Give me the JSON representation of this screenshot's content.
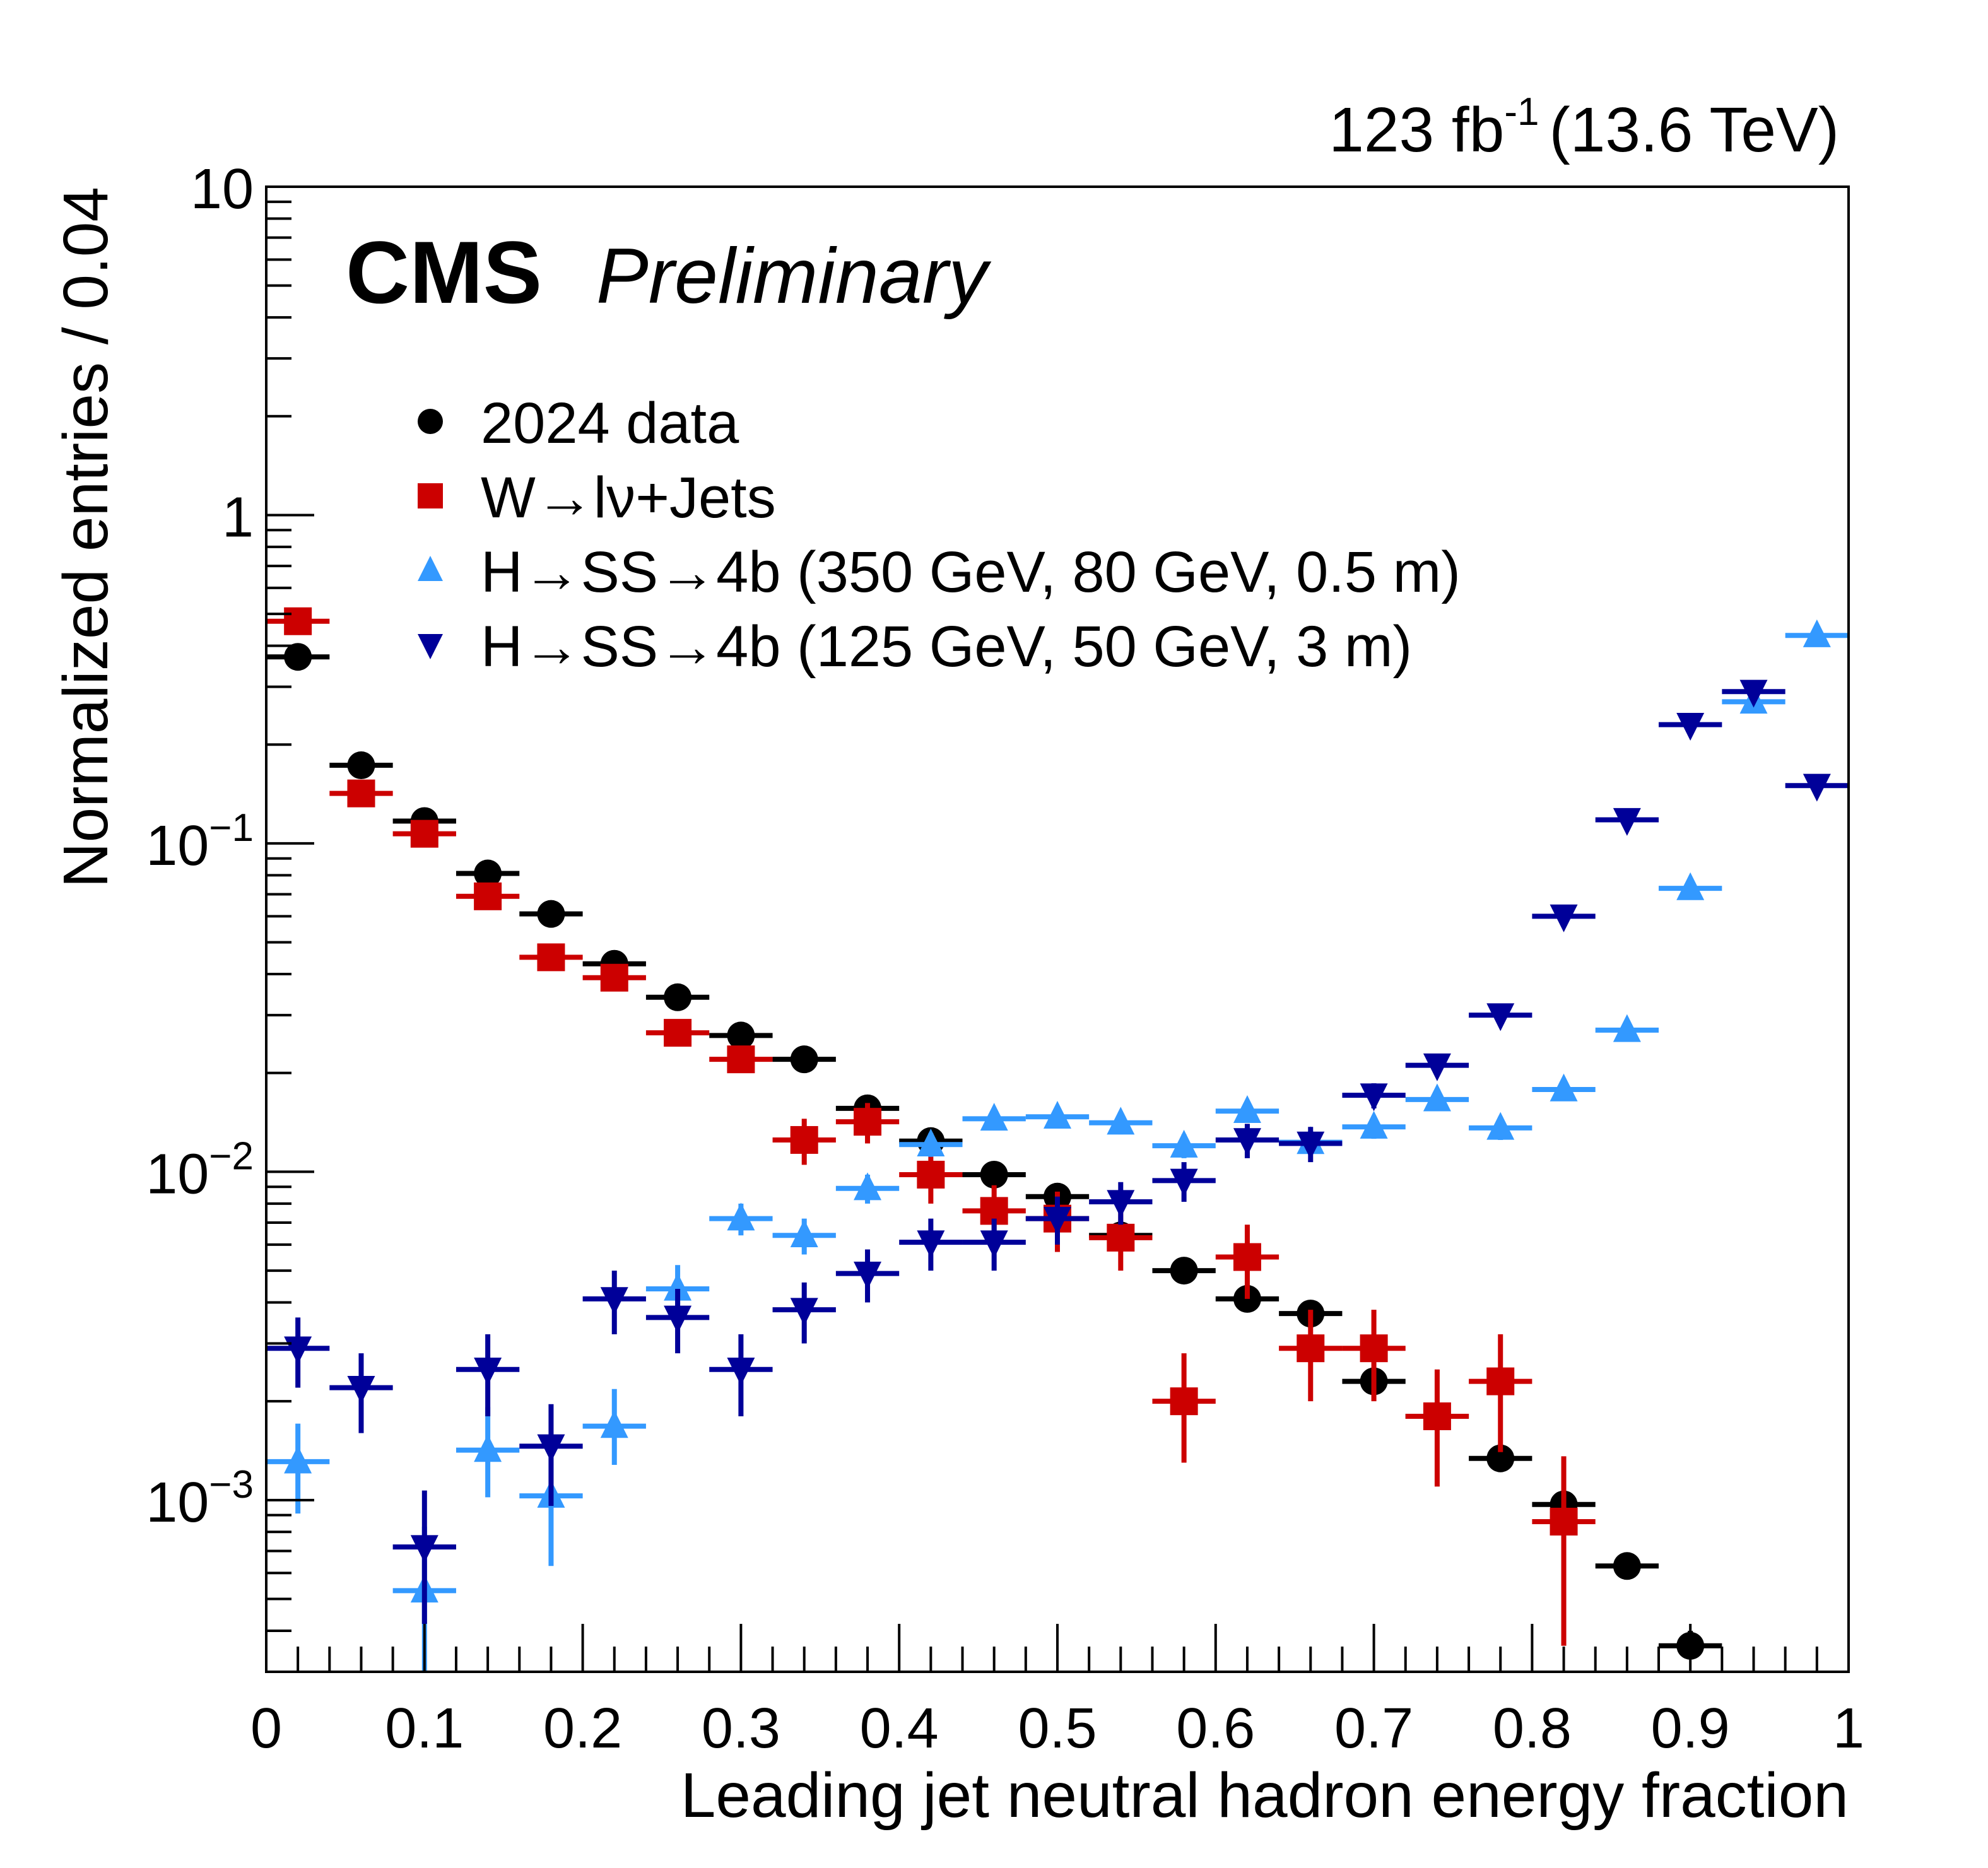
{
  "chart_data": {
    "type": "scatter",
    "title": "",
    "experiment_label": "CMS",
    "experiment_sublabel": "Preliminary",
    "lumi_label": "123 fb",
    "lumi_exponent": "-1",
    "energy_label": "(13.6 TeV)",
    "xlabel": "Leading jet neutral hadron energy fraction",
    "ylabel": "Normalized entries / 0.04",
    "xlim": [
      0,
      1
    ],
    "ylim": [
      0.0003,
      10
    ],
    "yscale": "log",
    "grid": false,
    "legend_position": "top-left",
    "x_ticks": [
      {
        "value": 0,
        "label": "0"
      },
      {
        "value": 0.1,
        "label": "0.1"
      },
      {
        "value": 0.2,
        "label": "0.2"
      },
      {
        "value": 0.3,
        "label": "0.3"
      },
      {
        "value": 0.4,
        "label": "0.4"
      },
      {
        "value": 0.5,
        "label": "0.5"
      },
      {
        "value": 0.6,
        "label": "0.6"
      },
      {
        "value": 0.7,
        "label": "0.7"
      },
      {
        "value": 0.8,
        "label": "0.8"
      },
      {
        "value": 0.9,
        "label": "0.9"
      },
      {
        "value": 1,
        "label": "1"
      }
    ],
    "y_ticks": [
      {
        "value": 10,
        "base": "10",
        "exp": ""
      },
      {
        "value": 1,
        "base": "1",
        "exp": ""
      },
      {
        "value": 0.1,
        "base": "10",
        "exp": "−1"
      },
      {
        "value": 0.01,
        "base": "10",
        "exp": "−2"
      },
      {
        "value": 0.001,
        "base": "10",
        "exp": "−3"
      }
    ],
    "bin_width": 0.04,
    "x": [
      0.02,
      0.06,
      0.1,
      0.14,
      0.18,
      0.22,
      0.26,
      0.3,
      0.34,
      0.38,
      0.42,
      0.46,
      0.5,
      0.54,
      0.58,
      0.62,
      0.66,
      0.7,
      0.74,
      0.78,
      0.82,
      0.86,
      0.9,
      0.94,
      0.98
    ],
    "series": [
      {
        "name": "2024 data",
        "marker": "circle",
        "color": "#000000",
        "values": [
          0.37,
          0.173,
          0.117,
          0.081,
          0.061,
          0.043,
          0.034,
          0.026,
          0.022,
          0.0156,
          0.0124,
          0.0098,
          0.0084,
          0.0064,
          0.005,
          0.0041,
          0.0037,
          0.0023,
          0.0018,
          0.00134,
          0.00097,
          0.00063,
          0.00036,
          null,
          null
        ],
        "err_up": [
          0,
          0,
          0,
          0,
          0,
          0,
          0,
          0,
          0,
          0,
          0,
          0,
          0,
          0,
          0,
          0,
          0,
          0,
          0,
          0,
          0,
          0,
          4e-05,
          null,
          null
        ],
        "err_down": [
          0,
          0,
          0,
          0,
          0,
          0,
          0,
          0,
          0,
          0,
          0,
          0,
          0,
          0,
          0,
          0,
          0,
          0,
          0,
          0,
          0,
          0,
          3e-05,
          null,
          null
        ]
      },
      {
        "name": "W→lν+Jets",
        "marker": "square",
        "color": "#cc0000",
        "values": [
          0.475,
          0.142,
          0.107,
          0.069,
          0.045,
          0.039,
          0.0265,
          0.022,
          0.0125,
          0.0142,
          0.0098,
          0.0076,
          0.0072,
          0.0063,
          0.002,
          0.0055,
          0.0029,
          0.0029,
          0.0018,
          0.0023,
          0.00086,
          null,
          null,
          null,
          null
        ],
        "err_up": [
          0,
          0,
          0,
          0,
          0,
          0,
          0.002,
          0.002,
          0.002,
          0.002,
          0.0018,
          0.0015,
          0.0015,
          0.0013,
          0.0008,
          0.0014,
          0.0009,
          0.0009,
          0.0007,
          0.0009,
          0.0005,
          null,
          null,
          null,
          null
        ],
        "err_down": [
          0,
          0,
          0,
          0,
          0,
          0,
          0.002,
          0.002,
          0.002,
          0.002,
          0.0018,
          0.0015,
          0.0015,
          0.0013,
          0.0007,
          0.0014,
          0.0009,
          0.0009,
          0.0007,
          0.0009,
          0.0005,
          null,
          null,
          null,
          null
        ]
      },
      {
        "name": "H→SS→4b (350 GeV, 80 GeV, 0.5 m)",
        "marker": "triangle-up",
        "color": "#3399ff",
        "values": [
          0.00131,
          null,
          0.00053,
          0.00142,
          0.00103,
          0.00168,
          0.0044,
          0.0072,
          0.0064,
          0.0089,
          0.0121,
          0.0145,
          0.0147,
          0.0141,
          0.012,
          0.0153,
          0.0123,
          0.0137,
          0.0166,
          0.0136,
          0.0178,
          0.027,
          0.073,
          0.27,
          0.43
        ],
        "err_up": [
          0.0004,
          null,
          0.0003,
          0.0005,
          0.0004,
          0.0005,
          0.0008,
          0.0008,
          0.0008,
          0.0009,
          0.001,
          0.0011,
          0.0011,
          0.0011,
          0.001,
          0.0011,
          0.001,
          0.0011,
          0.0012,
          0.0011,
          0.0012,
          0,
          0,
          0,
          0
        ],
        "err_down": [
          0.0004,
          null,
          0.00025,
          0.0004,
          0.0004,
          0.0004,
          0.0007,
          0.0008,
          0.0008,
          0.0009,
          0.001,
          0.0011,
          0.0011,
          0.0011,
          0.001,
          0.0011,
          0.001,
          0.0011,
          0.0012,
          0.0011,
          0.0012,
          0,
          0,
          0,
          0
        ]
      },
      {
        "name": "H→SS→4b (125 GeV, 50 GeV, 3 m)",
        "marker": "triangle-down",
        "color": "#000099",
        "values": [
          0.0029,
          0.0022,
          0.00072,
          0.0025,
          0.00146,
          0.0041,
          0.0036,
          0.0025,
          0.0038,
          0.0049,
          0.0061,
          0.0061,
          0.0072,
          0.0081,
          0.0094,
          0.0125,
          0.0122,
          0.0171,
          0.0211,
          0.03,
          0.06,
          0.118,
          0.23,
          0.29,
          0.15
        ],
        "err_up": [
          0.0007,
          0.0006,
          0.00035,
          0.0007,
          0.0005,
          0.0009,
          0.0008,
          0.0007,
          0.0008,
          0.0009,
          0.0011,
          0.0011,
          0.0012,
          0.0012,
          0.0013,
          0.0015,
          0.0015,
          0.0015,
          0.0015,
          0,
          0,
          0,
          0,
          0,
          0
        ],
        "err_down": [
          0.0007,
          0.0006,
          0.0003,
          0.0007,
          0.0005,
          0.0009,
          0.0008,
          0.0007,
          0.0008,
          0.0009,
          0.0011,
          0.0011,
          0.0012,
          0.0012,
          0.0013,
          0.0015,
          0.0015,
          0.0015,
          0.0015,
          0,
          0,
          0,
          0,
          0,
          0
        ]
      }
    ]
  }
}
